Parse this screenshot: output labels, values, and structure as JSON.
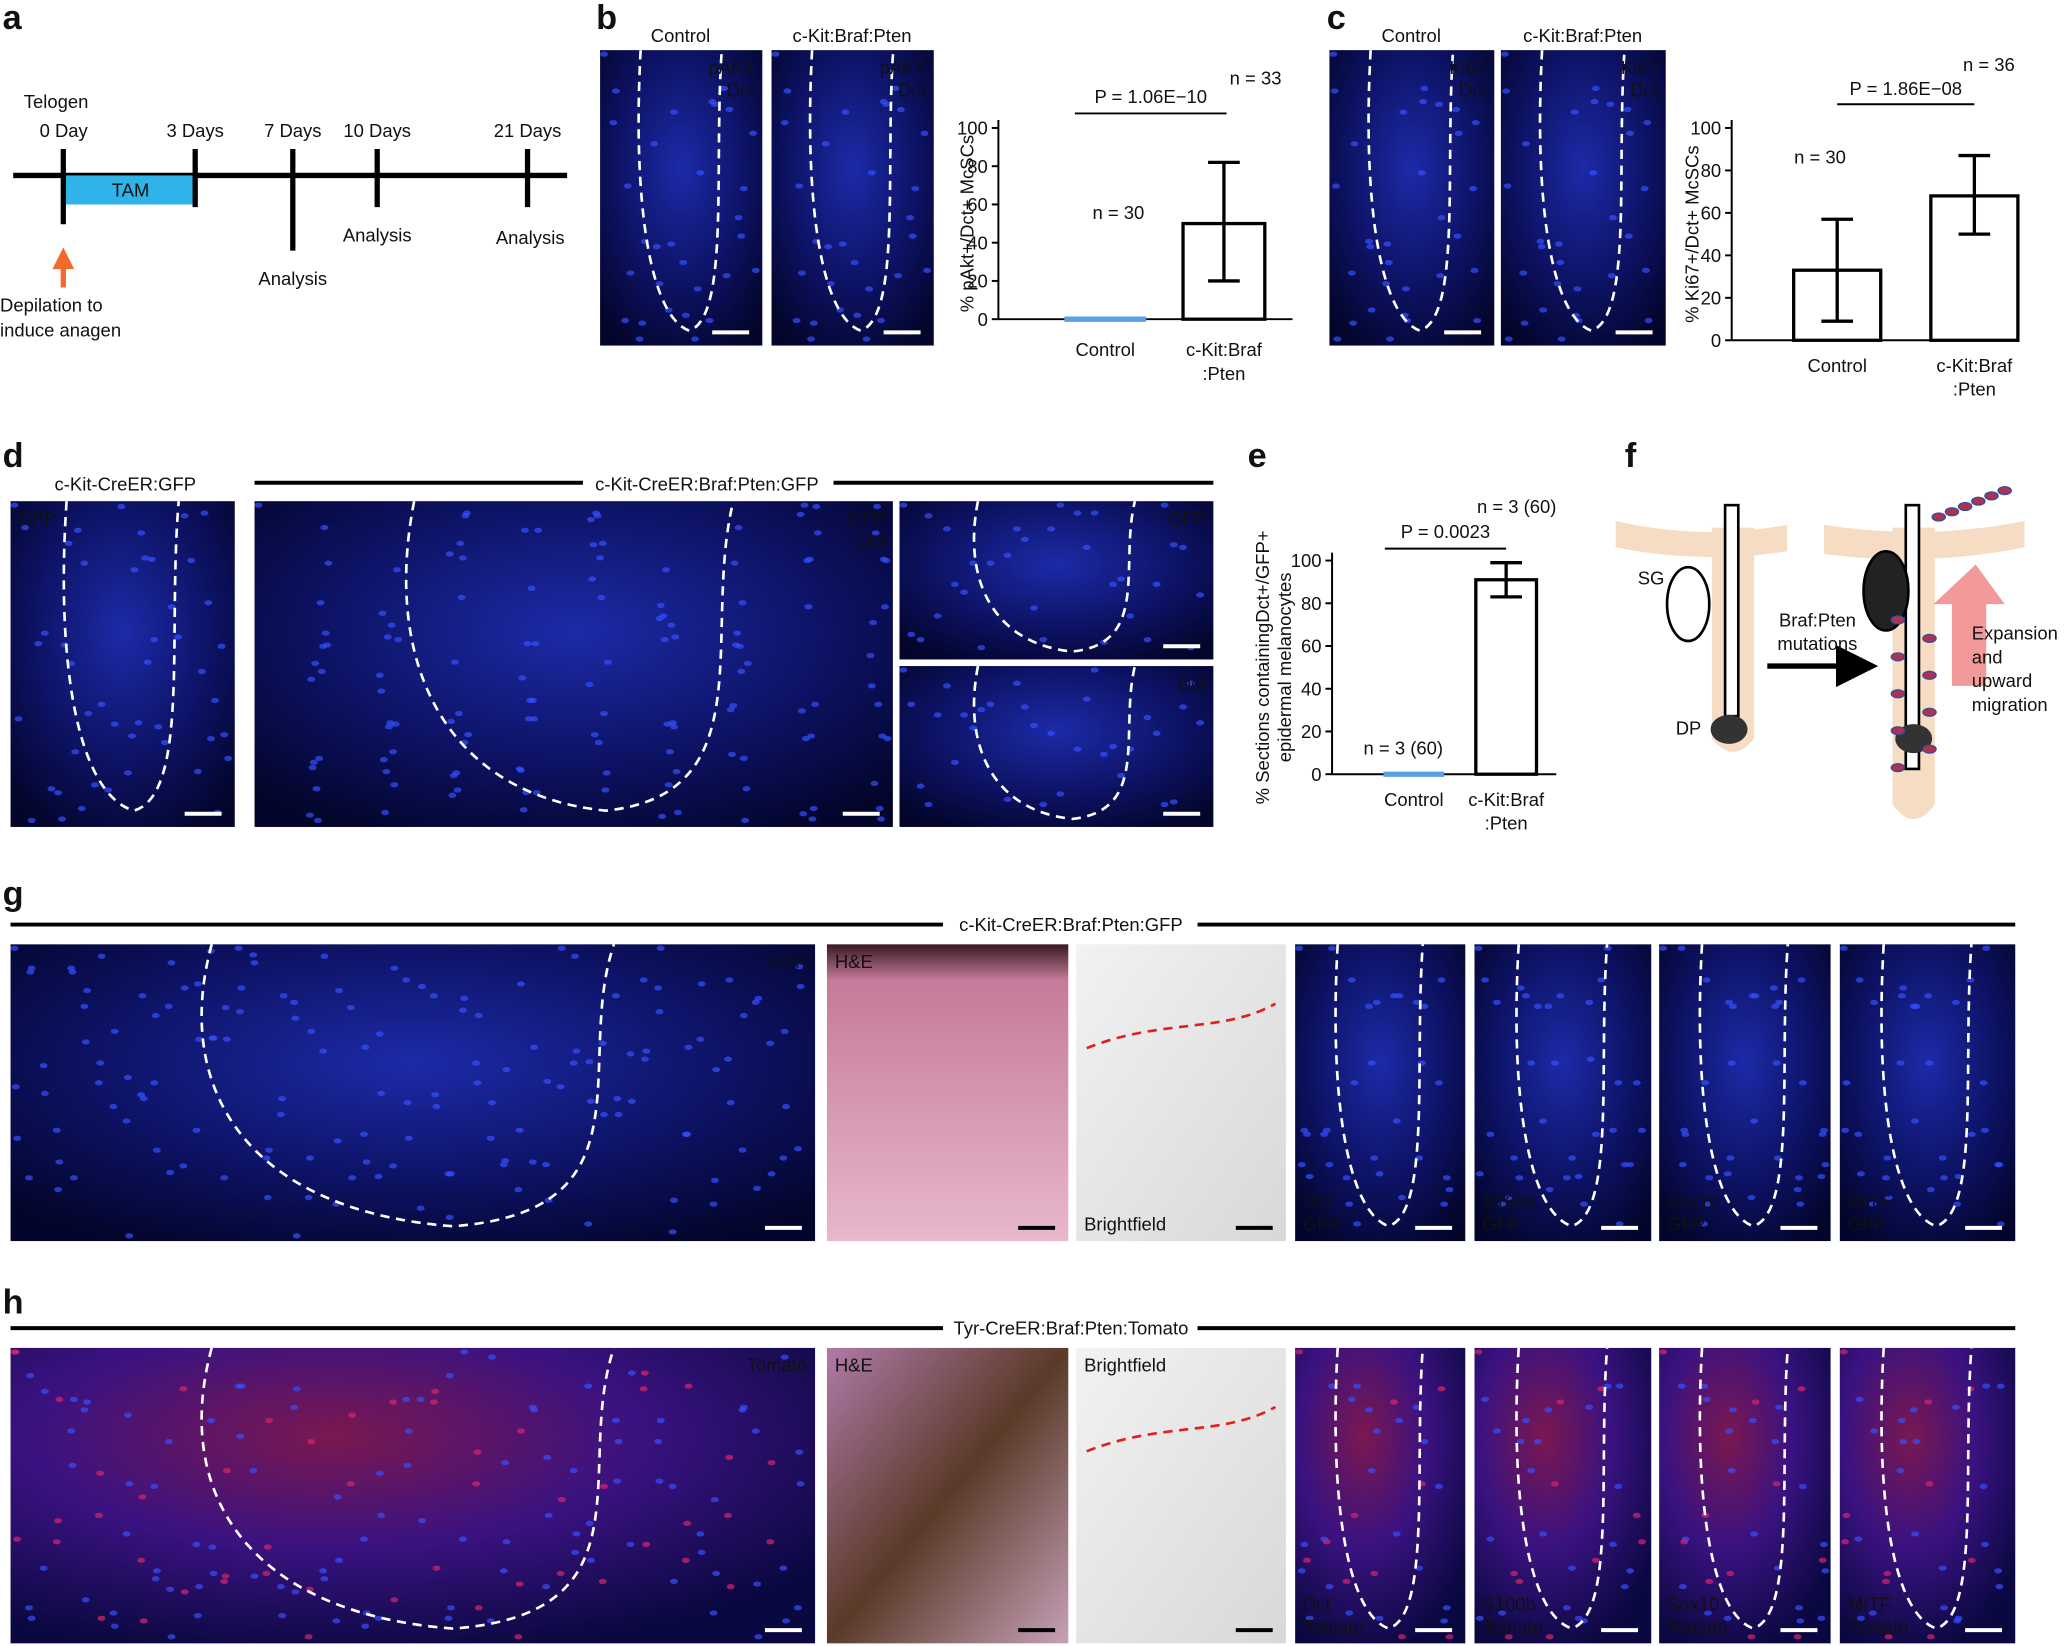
{
  "panel_a": {
    "label": "a",
    "stage": "Telogen",
    "days": [
      "0 Day",
      "3 Days",
      "7 Days",
      "10 Days",
      "21 Days"
    ],
    "treatment": "TAM",
    "analysis": [
      "Analysis",
      "Analysis",
      "Analysis"
    ],
    "depilation": [
      "Depilation to",
      "induce anagen"
    ]
  },
  "panel_b": {
    "label": "b",
    "images": [
      {
        "title": "Control",
        "stains": [
          "pAKT",
          "Dct"
        ],
        "colors": [
          "#33e833",
          "#ff2a2a"
        ]
      },
      {
        "title": "c-Kit:Braf:Pten",
        "stains": [
          "pAKT",
          "Dct"
        ],
        "colors": [
          "#33e833",
          "#ff2a2a"
        ]
      }
    ],
    "chart": {
      "type": "bar",
      "y_label": [
        "% pAkt+/Dct+ McSCs"
      ],
      "categories": [
        [
          "Control"
        ],
        [
          "c-Kit:Braf",
          ":Pten"
        ]
      ],
      "values": [
        0,
        50
      ],
      "sd_low": [
        null,
        20
      ],
      "sd_high": [
        null,
        82
      ],
      "ylim": [
        0,
        100
      ],
      "yticks": [
        0,
        20,
        40,
        60,
        80,
        100
      ],
      "p_value": "P = 1.06E−10",
      "n": [
        "n = 30",
        "n = 33"
      ],
      "colors": [
        "#5aa0e6",
        "#2ad69a"
      ]
    }
  },
  "panel_c": {
    "label": "c",
    "images": [
      {
        "title": "Control",
        "stains": [
          "Ki67",
          "Dct"
        ],
        "colors": [
          "#33e833",
          "#ff2a2a"
        ]
      },
      {
        "title": "c-Kit:Braf:Pten",
        "stains": [
          "Ki67",
          "Dct"
        ],
        "colors": [
          "#33e833",
          "#ff2a2a"
        ]
      }
    ],
    "chart": {
      "type": "bar",
      "y_label": [
        "% Ki67+/Dct+ McSCs"
      ],
      "categories": [
        [
          "Control"
        ],
        [
          "c-Kit:Braf",
          ":Pten"
        ]
      ],
      "values": [
        33,
        68
      ],
      "sd_low": [
        9,
        50
      ],
      "sd_high": [
        57,
        87
      ],
      "ylim": [
        0,
        100
      ],
      "yticks": [
        0,
        20,
        40,
        60,
        80,
        100
      ],
      "p_value": "P = 1.86E−08",
      "n": [
        "n = 30",
        "n = 36"
      ],
      "colors": [
        "#5aa0e6",
        "#2ad69a"
      ]
    }
  },
  "panel_d": {
    "label": "d",
    "titles": [
      "c-Kit-CreER:GFP",
      "c-Kit-CreER:Braf:Pten:GFP"
    ],
    "images": [
      {
        "stains": [
          "GFP"
        ],
        "colors": [
          "#33e833"
        ]
      },
      {
        "stains": [
          "GFP",
          "Dct"
        ],
        "colors": [
          "#33e833",
          "#ff2a2a"
        ]
      },
      {
        "stains": [
          "GFP"
        ],
        "colors": [
          "#33e833"
        ]
      },
      {
        "stains": [
          "Dct"
        ],
        "colors": [
          "#ff2a2a"
        ]
      }
    ]
  },
  "panel_e": {
    "label": "e",
    "chart": {
      "type": "bar",
      "y_label": [
        "% Sections containingDct+/GFP+",
        "epidermal melanocytes"
      ],
      "categories": [
        [
          "Control"
        ],
        [
          "c-Kit:Braf",
          ":Pten"
        ]
      ],
      "values": [
        0,
        91
      ],
      "sd_low": [
        null,
        83
      ],
      "sd_high": [
        null,
        99
      ],
      "ylim": [
        0,
        100
      ],
      "yticks": [
        0,
        20,
        40,
        60,
        80,
        100
      ],
      "p_value": "P = 0.0023",
      "n": [
        "n = 3 (60)",
        "n = 3 (60)"
      ],
      "colors": [
        "#5aa0e6",
        "#2ad69a"
      ]
    }
  },
  "panel_f": {
    "label": "f",
    "sg": "SG",
    "dp": "DP",
    "mutation": [
      "Braf:Pten",
      "mutations"
    ],
    "outcome": [
      "Expansion",
      "and",
      "upward",
      "migration"
    ]
  },
  "panel_g": {
    "label": "g",
    "title": "c-Kit-CreER:Braf:Pten:GFP",
    "images": [
      {
        "stains": [
          "GFP"
        ],
        "colors": [
          "#33e833"
        ]
      },
      {
        "stains": [
          "H&E"
        ],
        "colors": [
          "#ffffff"
        ]
      },
      {
        "stains": [
          "Brightfield"
        ],
        "colors": [
          "#111111"
        ]
      },
      {
        "stains": [
          "Dct",
          "GFP"
        ],
        "colors": [
          "#ff2a2a",
          "#33e833"
        ]
      },
      {
        "stains": [
          "S100b",
          "GFP"
        ],
        "colors": [
          "#ff2a2a",
          "#33e833"
        ]
      },
      {
        "stains": [
          "Sox10",
          "GFP"
        ],
        "colors": [
          "#ff2a2a",
          "#33e833"
        ]
      },
      {
        "stains": [
          "MITF",
          "GFP"
        ],
        "colors": [
          "#ff2a2a",
          "#33e833"
        ]
      }
    ]
  },
  "panel_h": {
    "label": "h",
    "title": "Tyr-CreER:Braf:Pten:Tomato",
    "images": [
      {
        "stains": [
          "Tomato"
        ],
        "colors": [
          "#ff2a2a"
        ]
      },
      {
        "stains": [
          "H&E"
        ],
        "colors": [
          "#ffffff"
        ]
      },
      {
        "stains": [
          "Brightfield"
        ],
        "colors": [
          "#111111"
        ]
      },
      {
        "stains": [
          "Dct",
          "Tomato"
        ],
        "colors": [
          "#33e833",
          "#ff2a2a"
        ]
      },
      {
        "stains": [
          "S100b",
          "Tomato"
        ],
        "colors": [
          "#33e833",
          "#ff2a2a"
        ]
      },
      {
        "stains": [
          "Sox10",
          "Tomato"
        ],
        "colors": [
          "#33e833",
          "#ff2a2a"
        ]
      },
      {
        "stains": [
          "MITF",
          "Tomato"
        ],
        "colors": [
          "#33e833",
          "#ff2a2a"
        ]
      }
    ]
  }
}
